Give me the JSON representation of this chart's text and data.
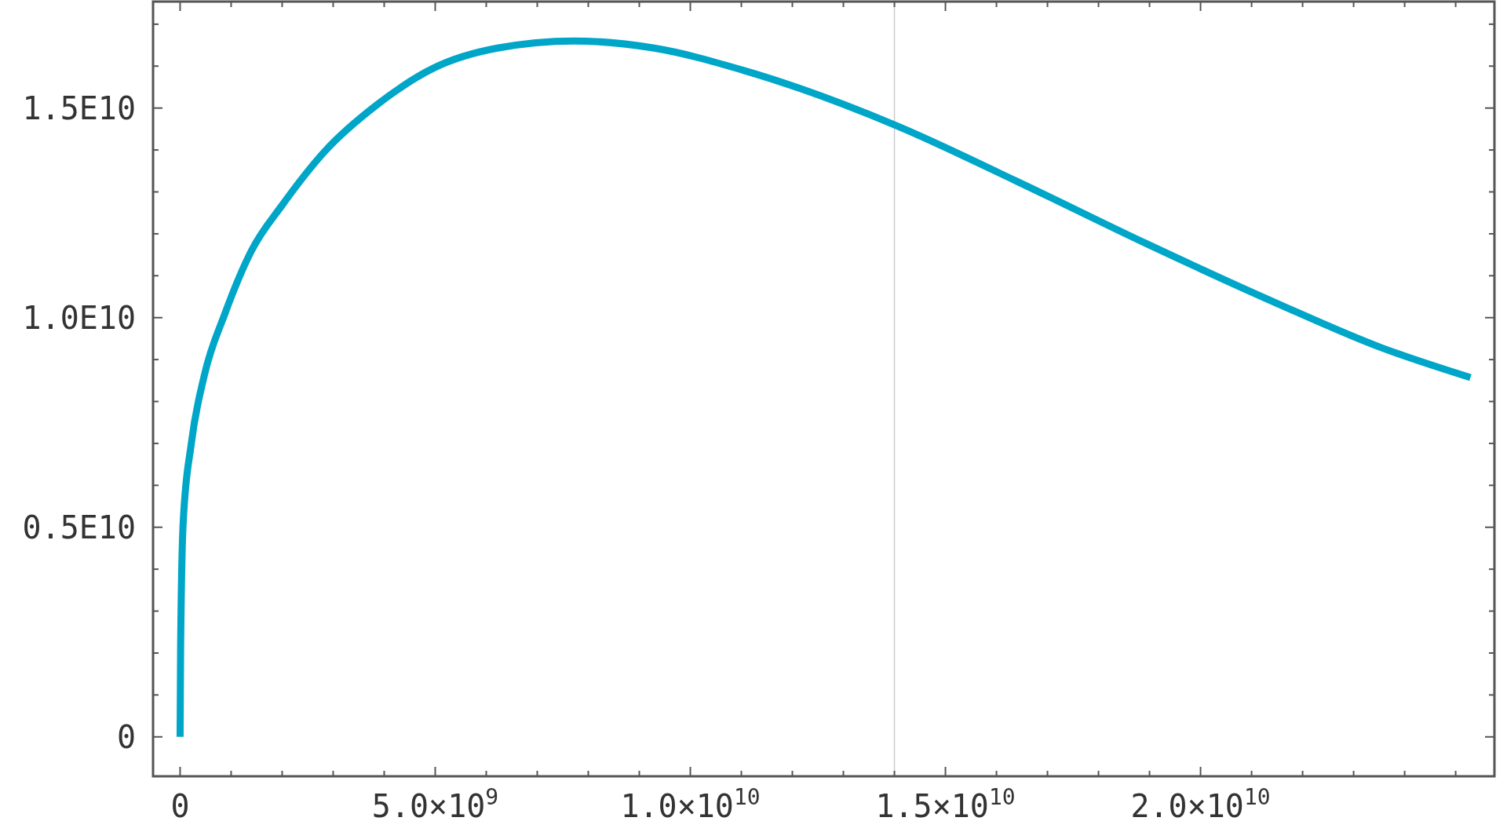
{
  "chart_data": {
    "type": "line",
    "x": [
      0,
      10000000.0,
      60000000.0,
      220000000.0,
      470000000.0,
      880000000.0,
      1400000000.0,
      2010000000.0,
      2830000000.0,
      3860000000.0,
      4980000000.0,
      6220000000.0,
      7720000000.0,
      9290000000.0,
      11040000000.0,
      14040000000.0,
      16370000000.0,
      18930000000.0,
      21500000000.0,
      23550000000.0,
      25290000000.0
    ],
    "series": [
      {
        "color": "#00a6c8",
        "values": [
          0,
          2100000000.0,
          5100000000.0,
          7000000000.0,
          8600000000.0,
          10100000000.0,
          11600000000.0,
          12700000000.0,
          13960000000.0,
          15080000000.0,
          15960000000.0,
          16430000000.0,
          16600000000.0,
          16430000000.0,
          15900000000.0,
          14580000000.0,
          13270000000.0,
          11770000000.0,
          10340000000.0,
          9280000000.0,
          8570000000.0
        ]
      }
    ],
    "xlim": [
      -530000000.0,
      25760000000.0
    ],
    "ylim": [
      -940000000.0,
      17540000000.0
    ],
    "xticks": [
      0,
      {
        "value": 1000000000.0,
        "label": null
      },
      {
        "value": 2000000000.0,
        "label": null
      },
      {
        "value": 3000000000.0,
        "label": null
      },
      {
        "value": 4000000000.0,
        "label": null
      },
      {
        "value": 5000000000.0,
        "label": "5.0×10$^{9}$"
      },
      {
        "value": 6000000000.0,
        "label": null
      },
      {
        "value": 7000000000.0,
        "label": null
      },
      {
        "value": 8000000000.0,
        "label": null
      },
      {
        "value": 9000000000.0,
        "label": null
      },
      {
        "value": 10000000000.0,
        "label": "1.0×10$^{10}$"
      },
      {
        "value": 11000000000.0,
        "label": null
      },
      {
        "value": 12000000000.0,
        "label": null
      },
      {
        "value": 13000000000.0,
        "label": null
      },
      {
        "value": 14000000000.0,
        "label": null
      },
      {
        "value": 15000000000.0,
        "label": "1.5×10$^{10}$"
      },
      {
        "value": 16000000000.0,
        "label": null
      },
      {
        "value": 17000000000.0,
        "label": null
      },
      {
        "value": 18000000000.0,
        "label": null
      },
      {
        "value": 19000000000.0,
        "label": null
      },
      {
        "value": 20000000000.0,
        "label": "2.0×10$^{10}$"
      },
      {
        "value": 21000000000.0,
        "label": null
      },
      {
        "value": 22000000000.0,
        "label": null
      },
      {
        "value": 23000000000.0,
        "label": null
      },
      {
        "value": 24000000000.0,
        "label": null
      },
      {
        "value": 25000000000.0,
        "label": null
      }
    ],
    "yticks": [
      0,
      {
        "value": 1000000000.0,
        "label": null
      },
      {
        "value": 2000000000.0,
        "label": null
      },
      {
        "value": 3000000000.0,
        "label": null
      },
      {
        "value": 4000000000.0,
        "label": null
      },
      {
        "value": 5000000000.0,
        "label": "0.5E10"
      },
      {
        "value": 6000000000.0,
        "label": null
      },
      {
        "value": 7000000000.0,
        "label": null
      },
      {
        "value": 8000000000.0,
        "label": null
      },
      {
        "value": 9000000000.0,
        "label": null
      },
      {
        "value": 10000000000.0,
        "label": "1.0E10"
      },
      {
        "value": 11000000000.0,
        "label": null
      },
      {
        "value": 12000000000.0,
        "label": null
      },
      {
        "value": 13000000000.0,
        "label": null
      },
      {
        "value": 14000000000.0,
        "label": null
      },
      {
        "value": 15000000000.0,
        "label": "1.5E10"
      },
      {
        "value": 16000000000.0,
        "label": null
      },
      {
        "value": 17000000000.0,
        "label": null
      }
    ],
    "ref_lines": [
      {
        "axis": "x",
        "value": 14000000000.0,
        "color": "#cccccc"
      }
    ],
    "grid": false,
    "marker": "none",
    "line_style": "solid"
  }
}
